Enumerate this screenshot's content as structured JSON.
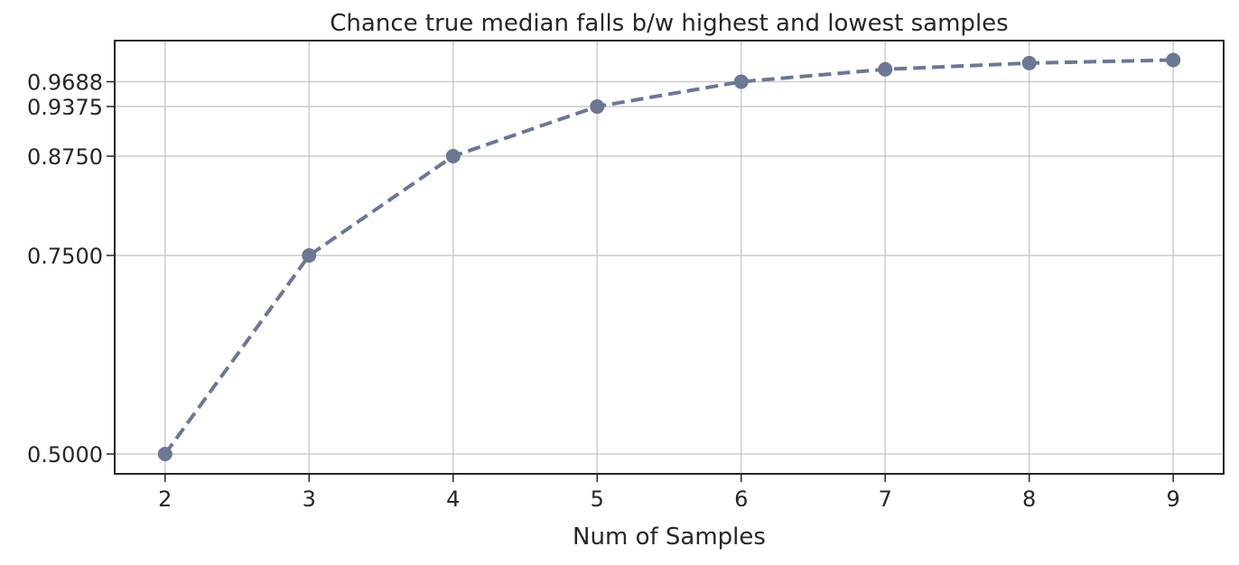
{
  "chart_data": {
    "type": "line",
    "title": "Chance true median falls b/w highest and lowest samples",
    "xlabel": "Num of Samples",
    "ylabel": "",
    "x": [
      2,
      3,
      4,
      5,
      6,
      7,
      8,
      9
    ],
    "series": [
      {
        "values": [
          0.5,
          0.75,
          0.875,
          0.9375,
          0.96875,
          0.984375,
          0.9921875,
          0.99609375
        ],
        "color": "#6b7793",
        "line_style": "dashed",
        "marker": "circle"
      }
    ],
    "xticks": [
      "2",
      "3",
      "4",
      "5",
      "6",
      "7",
      "8",
      "9"
    ],
    "yticks": [
      {
        "value": 0.5,
        "label": "0.5000"
      },
      {
        "value": 0.75,
        "label": "0.7500"
      },
      {
        "value": 0.875,
        "label": "0.8750"
      },
      {
        "value": 0.9375,
        "label": "0.9375"
      },
      {
        "value": 0.96875,
        "label": "0.9688"
      }
    ],
    "xlim": [
      1.65,
      9.35
    ],
    "ylim": [
      0.475,
      1.0205
    ],
    "grid": true,
    "legend": "none"
  }
}
